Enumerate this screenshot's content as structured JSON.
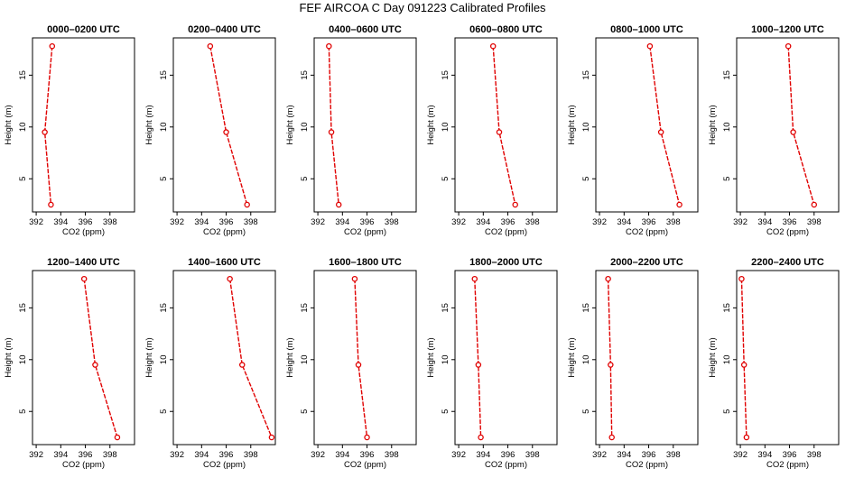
{
  "title": "FEF  AIRCOA C  Day 091223  Calibrated Profiles",
  "series_color": "#e00000",
  "chart_data": {
    "type": "line",
    "xlabel": "CO2 (ppm)",
    "ylabel": "Height (m)",
    "xlim": [
      391.7,
      400.0
    ],
    "ylim": [
      1.8,
      18.6
    ],
    "xticks": [
      392,
      394,
      396,
      398
    ],
    "yticks": [
      5,
      10,
      15
    ],
    "grid": false,
    "panels": [
      {
        "title": "0000–0200 UTC",
        "heights": [
          17.8,
          9.5,
          2.5
        ],
        "co2": [
          393.3,
          392.7,
          393.2
        ]
      },
      {
        "title": "0200–0400 UTC",
        "heights": [
          17.8,
          9.5,
          2.5
        ],
        "co2": [
          394.7,
          396.0,
          397.7
        ]
      },
      {
        "title": "0400–0600 UTC",
        "heights": [
          17.8,
          9.5,
          2.5
        ],
        "co2": [
          392.9,
          393.1,
          393.7
        ]
      },
      {
        "title": "0600–0800 UTC",
        "heights": [
          17.8,
          9.5,
          2.5
        ],
        "co2": [
          394.8,
          395.3,
          396.6
        ]
      },
      {
        "title": "0800–1000 UTC",
        "heights": [
          17.8,
          9.5,
          2.5
        ],
        "co2": [
          396.1,
          397.0,
          398.5
        ]
      },
      {
        "title": "1000–1200 UTC",
        "heights": [
          17.8,
          9.5,
          2.5
        ],
        "co2": [
          395.9,
          396.3,
          398.0
        ]
      },
      {
        "title": "1200–1400 UTC",
        "heights": [
          17.8,
          9.5,
          2.5
        ],
        "co2": [
          395.9,
          396.8,
          398.6
        ]
      },
      {
        "title": "1400–1600 UTC",
        "heights": [
          17.8,
          9.5,
          2.5
        ],
        "co2": [
          396.3,
          397.3,
          399.7
        ]
      },
      {
        "title": "1600–1800 UTC",
        "heights": [
          17.8,
          9.5,
          2.5
        ],
        "co2": [
          395.0,
          395.3,
          396.0
        ]
      },
      {
        "title": "1800–2000 UTC",
        "heights": [
          17.8,
          9.5,
          2.5
        ],
        "co2": [
          393.3,
          393.6,
          393.8
        ]
      },
      {
        "title": "2000–2200 UTC",
        "heights": [
          17.8,
          9.5,
          2.5
        ],
        "co2": [
          392.7,
          392.9,
          393.0
        ]
      },
      {
        "title": "2200–2400 UTC",
        "heights": [
          17.8,
          9.5,
          2.5
        ],
        "co2": [
          392.1,
          392.3,
          392.5
        ]
      }
    ]
  }
}
